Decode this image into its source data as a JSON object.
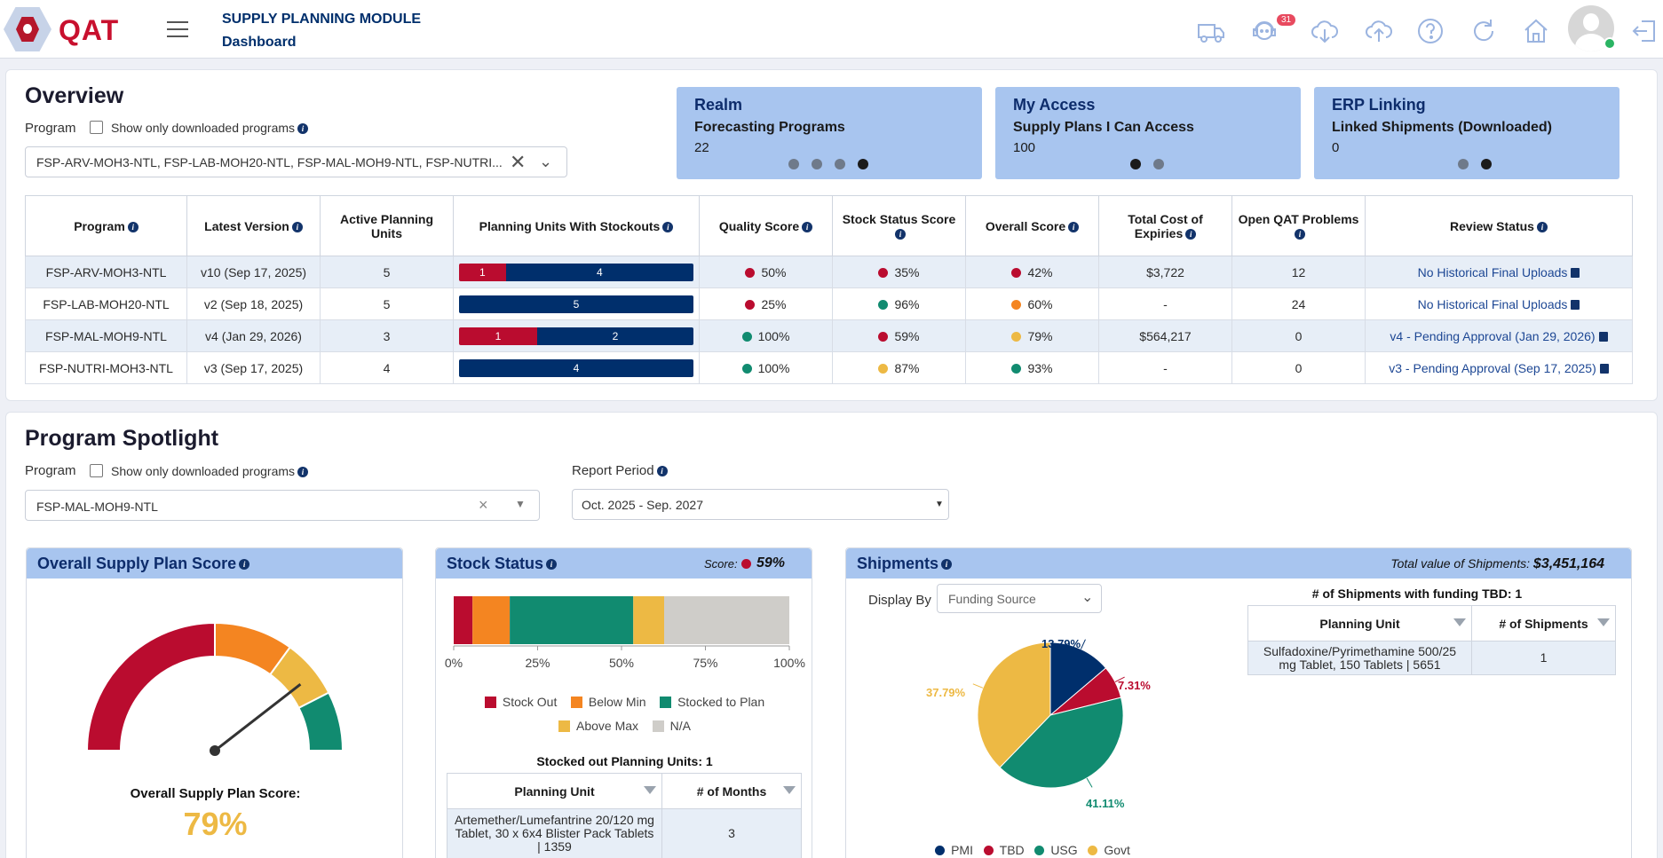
{
  "header": {
    "logo": "QAT",
    "module_title": "SUPPLY PLANNING MODULE",
    "page": "Dashboard",
    "notification_count": "31",
    "icons": [
      "truck-icon",
      "support-agent-icon",
      "cloud-download-icon",
      "cloud-upload-icon",
      "help-icon",
      "refresh-icon",
      "home-icon",
      "avatar",
      "logout-icon"
    ]
  },
  "overview": {
    "title": "Overview",
    "program_label": "Program",
    "show_downloaded_label": "Show only downloaded programs",
    "program_select_value": "FSP-ARV-MOH3-NTL, FSP-LAB-MOH20-NTL, FSP-MAL-MOH9-NTL, FSP-NUTRI...",
    "tiles": [
      {
        "title": "Realm",
        "subtitle": "Forecasting Programs",
        "value": "22"
      },
      {
        "title": "My Access",
        "subtitle": "Supply Plans I Can Access",
        "value": "100"
      },
      {
        "title": "ERP Linking",
        "subtitle": "Linked Shipments (Downloaded)",
        "value": "0"
      }
    ],
    "columns": [
      "Program",
      "Latest Version",
      "Active Planning Units",
      "Planning Units With Stockouts",
      "Quality Score",
      "Stock Status Score",
      "Overall Score",
      "Total Cost of Expiries",
      "Open QAT Problems",
      "Review Status"
    ],
    "rows": [
      {
        "program": "FSP-ARV-MOH3-NTL",
        "version": "v10 (Sep 17, 2025)",
        "active_pu": "5",
        "stockout_red": 1,
        "stockout_blue": 4,
        "quality": "50%",
        "quality_color": "#ba0c2f",
        "stock": "35%",
        "stock_color": "#ba0c2f",
        "overall": "42%",
        "overall_color": "#ba0c2f",
        "expiries": "$3,722",
        "problems": "12",
        "review": "No Historical Final Uploads"
      },
      {
        "program": "FSP-LAB-MOH20-NTL",
        "version": "v2 (Sep 18, 2025)",
        "active_pu": "5",
        "stockout_red": 0,
        "stockout_blue": 5,
        "quality": "25%",
        "quality_color": "#ba0c2f",
        "stock": "96%",
        "stock_color": "#118b70",
        "overall": "60%",
        "overall_color": "#f48521",
        "expiries": "-",
        "problems": "24",
        "review": "No Historical Final Uploads"
      },
      {
        "program": "FSP-MAL-MOH9-NTL",
        "version": "v4 (Jan 29, 2026)",
        "active_pu": "3",
        "stockout_red": 1,
        "stockout_blue": 2,
        "quality": "100%",
        "quality_color": "#118b70",
        "stock": "59%",
        "stock_color": "#ba0c2f",
        "overall": "79%",
        "overall_color": "#edb944",
        "expiries": "$564,217",
        "problems": "0",
        "review": "v4 - Pending Approval (Jan 29, 2026)"
      },
      {
        "program": "FSP-NUTRI-MOH3-NTL",
        "version": "v3 (Sep 17, 2025)",
        "active_pu": "4",
        "stockout_red": 0,
        "stockout_blue": 4,
        "quality": "100%",
        "quality_color": "#118b70",
        "stock": "87%",
        "stock_color": "#edb944",
        "overall": "93%",
        "overall_color": "#118b70",
        "expiries": "-",
        "problems": "0",
        "review": "v3 - Pending Approval (Sep 17, 2025)"
      }
    ]
  },
  "spotlight": {
    "title": "Program Spotlight",
    "program_label": "Program",
    "show_downloaded_label": "Show only downloaded programs",
    "program_value": "FSP-MAL-MOH9-NTL",
    "report_period_label": "Report Period",
    "report_period_value": "Oct. 2025 - Sep. 2027",
    "overall_panel": {
      "title": "Overall Supply Plan Score",
      "score_label": "Overall Supply Plan Score:",
      "score": "79%",
      "score_value": 79,
      "gauge_bands": [
        {
          "from": 0,
          "to": 50,
          "color": "#ba0c2f"
        },
        {
          "from": 50,
          "to": 70,
          "color": "#f48521"
        },
        {
          "from": 70,
          "to": 85,
          "color": "#edb944"
        },
        {
          "from": 85,
          "to": 100,
          "color": "#118b70"
        }
      ]
    },
    "stock_panel": {
      "title": "Stock Status",
      "score_label": "Score:",
      "score": "59%",
      "score_color": "#ba0c2f",
      "axis_ticks": [
        "0%",
        "25%",
        "50%",
        "75%",
        "100%"
      ],
      "legend": [
        {
          "label": "Stock Out",
          "color": "#ba0c2f"
        },
        {
          "label": "Below Min",
          "color": "#f48521"
        },
        {
          "label": "Stocked to Plan",
          "color": "#118b70"
        },
        {
          "label": "Above Max",
          "color": "#edb944"
        },
        {
          "label": "N/A",
          "color": "#cfcdc9"
        }
      ],
      "segments": [
        {
          "name": "Stock Out",
          "value": 5.6,
          "color": "#ba0c2f"
        },
        {
          "name": "Below Min",
          "value": 11.1,
          "color": "#f48521"
        },
        {
          "name": "Stocked to Plan",
          "value": 36.8,
          "color": "#118b70"
        },
        {
          "name": "Above Max",
          "value": 9.2,
          "color": "#edb944"
        },
        {
          "name": "N/A",
          "value": 37.3,
          "color": "#cfcdc9"
        }
      ],
      "stockout_title": "Stocked out Planning Units: 1",
      "table_cols": [
        "Planning Unit",
        "# of Months"
      ],
      "table_rows": [
        {
          "unit": "Artemether/Lumefantrine 20/120 mg Tablet, 30 x 6x4 Blister Pack Tablets | 1359",
          "months": "3"
        }
      ]
    },
    "shipments_panel": {
      "title": "Shipments",
      "total_label": "Total value of Shipments:",
      "total_value": "$3,451,164",
      "display_by_label": "Display By",
      "display_by_value": "Funding Source",
      "tbd_title": "# of Shipments with funding TBD: 1",
      "table_cols": [
        "Planning Unit",
        "# of Shipments"
      ],
      "table_rows": [
        {
          "unit": "Sulfadoxine/Pyrimethamine 500/25 mg Tablet, 150 Tablets | 5651",
          "count": "1"
        }
      ],
      "pie": [
        {
          "name": "PMI",
          "label": "13.79%",
          "value": 13.79,
          "color": "#002f6c"
        },
        {
          "name": "TBD",
          "label": "7.31%",
          "value": 7.31,
          "color": "#ba0c2f"
        },
        {
          "name": "USG",
          "label": "41.11%",
          "value": 41.11,
          "color": "#118b70"
        },
        {
          "name": "Govt",
          "label": "37.79%",
          "value": 37.79,
          "color": "#edb944"
        }
      ]
    }
  },
  "chart_data": [
    {
      "type": "bar",
      "title": "Stock Status",
      "categories": [
        "Stock Out",
        "Below Min",
        "Stocked to Plan",
        "Above Max",
        "N/A"
      ],
      "values": [
        5.6,
        11.1,
        36.8,
        9.2,
        37.3
      ],
      "xlim": [
        0,
        100
      ]
    },
    {
      "type": "pie",
      "title": "Shipments",
      "categories": [
        "PMI",
        "TBD",
        "USG",
        "Govt"
      ],
      "values": [
        13.79,
        7.31,
        41.11,
        37.79
      ]
    }
  ]
}
